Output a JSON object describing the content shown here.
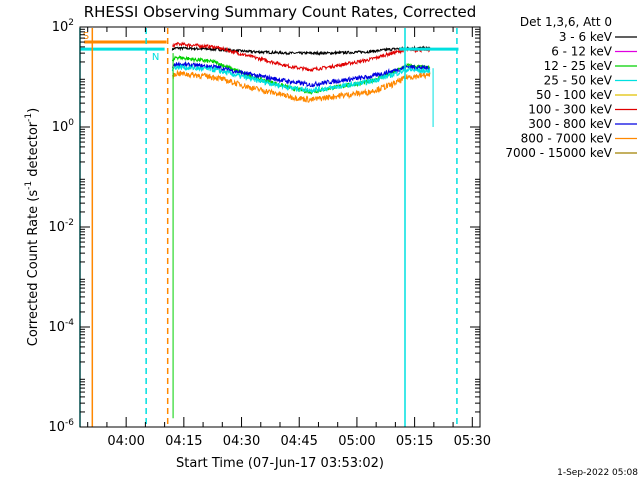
{
  "chart_data": {
    "type": "line",
    "title": "RHESSI Observing Summary Count Rates, Corrected",
    "xlabel": "Start Time (07-Jun-17 03:53:02)",
    "ylabel_main": "Corrected Count Rate (s",
    "ylabel_sup": "-1",
    "ylabel_mid": " detector",
    "ylabel_end": ")",
    "x_range_min": [
      -5.0,
      99.0
    ],
    "y_log_range": [
      -6,
      2
    ],
    "x_ticks": [
      {
        "min": 7,
        "label": "04:00"
      },
      {
        "min": 22,
        "label": "04:15"
      },
      {
        "min": 37,
        "label": "04:30"
      },
      {
        "min": 52,
        "label": "04:45"
      },
      {
        "min": 67,
        "label": "05:00"
      },
      {
        "min": 82,
        "label": "05:15"
      },
      {
        "min": 97,
        "label": "05:30"
      }
    ],
    "y_ticks": [
      {
        "exp": 2,
        "base": "10",
        "sup": "2"
      },
      {
        "exp": 0,
        "base": "10",
        "sup": "0"
      },
      {
        "exp": -2,
        "base": "10",
        "sup": "-2"
      },
      {
        "exp": -4,
        "base": "10",
        "sup": "-4"
      },
      {
        "exp": -6,
        "base": "10",
        "sup": "-6"
      }
    ],
    "legend": {
      "title": "Det 1,3,6, Att 0",
      "placement": "right",
      "entries": [
        {
          "label": "3 - 6 keV",
          "color": "#000000"
        },
        {
          "label": "6 - 12 keV",
          "color": "#e000e0"
        },
        {
          "label": "12 - 25 keV",
          "color": "#00d000"
        },
        {
          "label": "25 - 50 keV",
          "color": "#00e0e0"
        },
        {
          "label": "50 - 100 keV",
          "color": "#e0c000"
        },
        {
          "label": "100 - 300 keV",
          "color": "#e00000"
        },
        {
          "label": "300 - 800 keV",
          "color": "#0000e0"
        },
        {
          "label": "800 - 7000 keV",
          "color": "#ff8800"
        },
        {
          "label": "7000 - 15000 keV",
          "color": "#a08000"
        }
      ]
    },
    "series": [
      {
        "name": "3 - 6 keV",
        "color": "#000000",
        "x": [
          19,
          20,
          30,
          40,
          50,
          55,
          60,
          70,
          76,
          80,
          86
        ],
        "y": [
          36,
          38,
          36,
          32,
          30,
          30,
          30,
          32,
          36,
          38,
          38
        ]
      },
      {
        "name": "100 - 300 keV",
        "color": "#e00000",
        "x": [
          19,
          20,
          30,
          40,
          50,
          55,
          60,
          70,
          76,
          80,
          86
        ],
        "y": [
          40,
          46,
          40,
          25,
          16,
          14,
          16,
          22,
          30,
          35,
          35
        ]
      },
      {
        "name": "12 - 25 keV",
        "color": "#00d000",
        "x": [
          19,
          20,
          30,
          40,
          50,
          55,
          60,
          70,
          76,
          80,
          86
        ],
        "y": [
          20,
          25,
          20,
          10,
          6,
          5,
          6,
          8,
          12,
          17,
          15
        ]
      },
      {
        "name": "300 - 800 keV",
        "color": "#0000e0",
        "x": [
          19,
          20,
          30,
          40,
          50,
          55,
          60,
          70,
          76,
          80,
          86
        ],
        "y": [
          16,
          18,
          16,
          11,
          8,
          7,
          8,
          10,
          13,
          16,
          15
        ]
      },
      {
        "name": "25 - 50 keV",
        "color": "#00e0e0",
        "x": [
          19,
          20,
          30,
          40,
          50,
          55,
          60,
          70,
          76,
          80,
          86
        ],
        "y": [
          14,
          16,
          14,
          9,
          6,
          5.5,
          6,
          8,
          11,
          14,
          13
        ]
      },
      {
        "name": "800 - 7000 keV",
        "color": "#ff8800",
        "x": [
          19,
          20,
          30,
          40,
          50,
          55,
          60,
          70,
          76,
          80,
          86
        ],
        "y": [
          10,
          12,
          10,
          6,
          4,
          3.5,
          4,
          5,
          7,
          10,
          11
        ]
      }
    ],
    "markers": [
      {
        "label": "S",
        "color": "#ff8800",
        "text_min": -4.3,
        "bar_start_min": -3.9,
        "bar_end_min": 17.5,
        "level": 50
      },
      {
        "label": "N",
        "color": "#00e0e0",
        "text_min": 13.7,
        "bar_start_min": -5,
        "bar_end_min": 17.0,
        "level": 36,
        "bar2_start_min": 78.0,
        "bar2_end_min": 93.4
      }
    ],
    "vlines": [
      {
        "min": -1.8,
        "color": "#ff8800",
        "style": "solid"
      },
      {
        "min": -5.0,
        "color": "#00e0e0",
        "style": "solid"
      },
      {
        "min": 12.2,
        "color": "#00e0e0",
        "style": "dashed"
      },
      {
        "min": 17.8,
        "color": "#ff8800",
        "style": "dashed"
      },
      {
        "min": 79.5,
        "color": "#00e0e0",
        "style": "solid"
      },
      {
        "min": 93.0,
        "color": "#00e0e0",
        "style": "dashed"
      }
    ],
    "timestamp": "1-Sep-2022 05:08"
  }
}
